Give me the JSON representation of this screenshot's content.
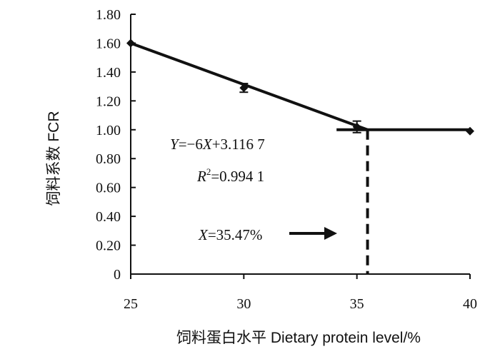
{
  "chart_data": {
    "type": "scatter",
    "title": "",
    "xlabel": "饲料蛋白水平 Dietary protein level/%",
    "ylabel": "饲料系数 FCR",
    "xlim": [
      25,
      40
    ],
    "ylim": [
      0,
      1.8
    ],
    "x_ticks": [
      "25",
      "30",
      "35",
      "40"
    ],
    "y_ticks": [
      "0",
      "0.20",
      "0.40",
      "0.60",
      "0.80",
      "1.00",
      "1.20",
      "1.40",
      "1.60",
      "1.80"
    ],
    "grid": false,
    "legend": "none",
    "series": [
      {
        "x": [
          25,
          30,
          35,
          40
        ],
        "y": [
          1.6,
          1.29,
          1.02,
          0.99
        ],
        "error": [
          0.0,
          0.03,
          0.04,
          0.0
        ]
      }
    ],
    "fit_lines": [
      {
        "x": [
          25,
          35.47
        ],
        "y": [
          1.6,
          1.0
        ]
      },
      {
        "x": [
          34.1,
          40
        ],
        "y": [
          1.0,
          1.0
        ]
      }
    ],
    "breakpoint_x": 35.47,
    "annotations": {
      "equation": {
        "pre": "Y",
        "mid": "=−6",
        "var": "X",
        "post": "+3.116 7"
      },
      "r2": {
        "var": "R",
        "sup": "2",
        "post": "=0.994 1"
      },
      "breakpoint": {
        "var": "X",
        "post": "=35.47%"
      }
    }
  }
}
